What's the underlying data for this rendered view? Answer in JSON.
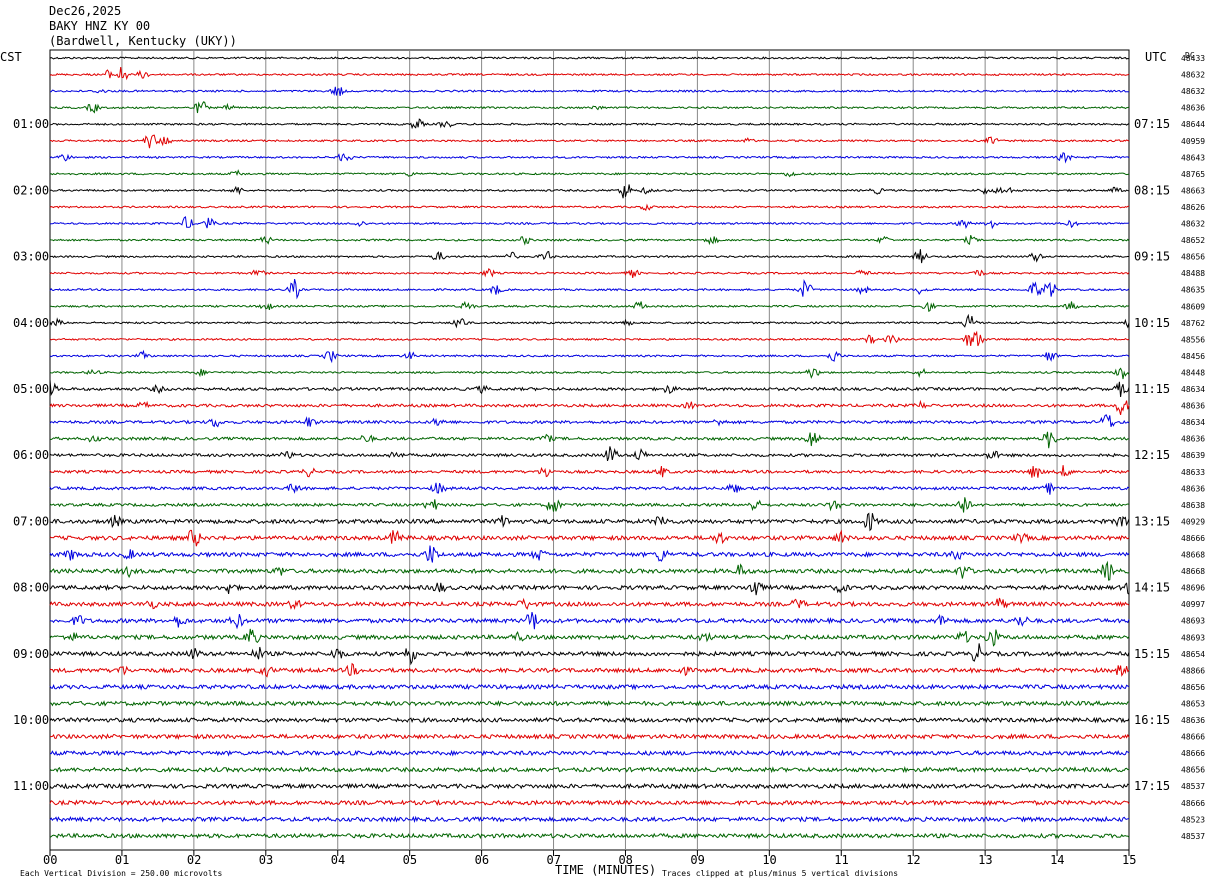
{
  "header": {
    "date": "Dec26,2025",
    "station": "BAKY HNZ KY 00",
    "location": "(Bardwell, Kentucky (UKY))"
  },
  "labels": {
    "left_tz": "CST",
    "right_tz": "UTC",
    "dc": "DC",
    "xlabel": "TIME (MINUTES)",
    "scale_note": "Each Vertical Division =  250.00 microvolts",
    "clip_note": "Traces clipped at plus/minus 5 vertical divisions"
  },
  "chart_data": {
    "type": "line",
    "title": "BAKY HNZ KY 00",
    "xlabel": "TIME (MINUTES)",
    "xlim": [
      0,
      15
    ],
    "x_ticks": [
      "00",
      "01",
      "02",
      "03",
      "04",
      "05",
      "06",
      "07",
      "08",
      "09",
      "10",
      "11",
      "12",
      "13",
      "14",
      "15"
    ],
    "trace_count": 48,
    "trace_minutes": 15,
    "color_cycle": [
      "#000000",
      "#e00000",
      "#0000e0",
      "#006400"
    ],
    "left_hour_labels": [
      "01:00",
      "02:00",
      "03:00",
      "04:00",
      "05:00",
      "06:00",
      "07:00",
      "08:00",
      "09:00",
      "10:00",
      "11:00"
    ],
    "right_hour_labels": [
      "07:15",
      "08:15",
      "09:15",
      "10:15",
      "11:15",
      "12:15",
      "13:15",
      "14:15",
      "15:15",
      "16:15",
      "17:15"
    ],
    "hour_label_rows": [
      4,
      8,
      12,
      16,
      20,
      24,
      28,
      32,
      36,
      40,
      44
    ],
    "dc_offsets": [
      "48433",
      "48632",
      "48632",
      "48636",
      "48644",
      "40959",
      "48643",
      "48765",
      "48663",
      "48626",
      "48632",
      "48652",
      "48656",
      "48488",
      "48635",
      "48609",
      "48762",
      "48556",
      "48456",
      "48448",
      "48634",
      "48636",
      "48634",
      "48636",
      "48639",
      "48633",
      "48636",
      "48638",
      "40929",
      "48666",
      "48668",
      "48668",
      "48696",
      "40997",
      "48693",
      "48693",
      "48654",
      "48866",
      "48656",
      "48653",
      "48636",
      "48666",
      "48666",
      "48656",
      "48537",
      "48666",
      "48523",
      "48537"
    ],
    "event_activity": "low early traces increasing to frequent events from 05:00 onward",
    "events": [
      [
        59.8,
        1
      ],
      [
        60.8,
        4
      ],
      [
        61.0,
        9
      ],
      [
        61.3,
        4
      ],
      [
        0.7,
        2
      ],
      [
        4.0,
        6
      ],
      [
        0.6,
        5
      ],
      [
        2.1,
        8
      ],
      [
        2.5,
        3
      ],
      [
        7.6,
        2
      ],
      [
        5.1,
        6
      ],
      [
        5.5,
        4
      ],
      [
        1.4,
        9
      ],
      [
        1.6,
        5
      ],
      [
        9.7,
        2
      ],
      [
        13.1,
        4
      ],
      [
        0.2,
        4
      ],
      [
        4.1,
        6
      ],
      [
        14.1,
        5
      ],
      [
        2.6,
        3
      ],
      [
        5.0,
        2
      ],
      [
        10.3,
        3
      ],
      [
        2.6,
        4
      ],
      [
        8.0,
        10
      ],
      [
        8.3,
        3
      ],
      [
        11.5,
        3
      ],
      [
        13.2,
        3
      ],
      [
        13.0,
        3
      ],
      [
        13.3,
        4
      ],
      [
        14.8,
        3
      ],
      [
        8.3,
        3
      ],
      [
        1.9,
        7
      ],
      [
        2.2,
        6
      ],
      [
        4.3,
        3
      ],
      [
        12.7,
        5
      ],
      [
        13.1,
        5
      ],
      [
        14.2,
        3
      ],
      [
        3.0,
        4
      ],
      [
        6.6,
        4
      ],
      [
        9.2,
        4
      ],
      [
        11.6,
        4
      ],
      [
        12.8,
        4
      ],
      [
        5.4,
        5
      ],
      [
        6.4,
        5
      ],
      [
        6.9,
        6
      ],
      [
        12.1,
        7
      ],
      [
        13.7,
        5
      ],
      [
        2.9,
        4
      ],
      [
        6.1,
        4
      ],
      [
        8.1,
        4
      ],
      [
        11.3,
        4
      ],
      [
        12.9,
        4
      ],
      [
        3.4,
        10
      ],
      [
        6.2,
        5
      ],
      [
        10.5,
        10
      ],
      [
        11.3,
        4
      ],
      [
        12.1,
        4
      ],
      [
        13.7,
        9
      ],
      [
        13.9,
        10
      ],
      [
        3.0,
        5
      ],
      [
        5.8,
        5
      ],
      [
        8.2,
        5
      ],
      [
        12.2,
        5
      ],
      [
        14.2,
        4
      ],
      [
        0.1,
        3
      ],
      [
        5.7,
        8
      ],
      [
        8.0,
        3
      ],
      [
        12.8,
        10
      ],
      [
        15.0,
        4
      ],
      [
        11.4,
        4
      ],
      [
        11.7,
        5
      ],
      [
        12.9,
        9
      ],
      [
        12.8,
        10
      ],
      [
        1.3,
        4
      ],
      [
        3.9,
        6
      ],
      [
        5.0,
        4
      ],
      [
        10.9,
        6
      ],
      [
        13.9,
        6
      ],
      [
        0.6,
        3
      ],
      [
        2.1,
        3
      ],
      [
        10.6,
        6
      ],
      [
        12.1,
        4
      ],
      [
        14.9,
        10
      ],
      [
        0.0,
        8
      ],
      [
        1.5,
        3
      ],
      [
        6.0,
        3
      ],
      [
        8.6,
        4
      ],
      [
        14.9,
        8
      ],
      [
        1.3,
        3
      ],
      [
        8.9,
        3
      ],
      [
        12.1,
        3
      ],
      [
        14.9,
        10
      ],
      [
        2.3,
        5
      ],
      [
        3.6,
        5
      ],
      [
        5.4,
        4
      ],
      [
        9.3,
        3
      ],
      [
        14.7,
        10
      ],
      [
        0.6,
        3
      ],
      [
        4.4,
        4
      ],
      [
        6.9,
        4
      ],
      [
        10.6,
        10
      ],
      [
        13.9,
        10
      ],
      [
        3.3,
        4
      ],
      [
        4.8,
        4
      ],
      [
        7.8,
        10
      ],
      [
        8.2,
        6
      ],
      [
        13.1,
        5
      ],
      [
        3.6,
        4
      ],
      [
        6.9,
        6
      ],
      [
        8.5,
        5
      ],
      [
        13.7,
        8
      ],
      [
        14.1,
        6
      ],
      [
        3.4,
        5
      ],
      [
        5.4,
        6
      ],
      [
        9.5,
        5
      ],
      [
        13.9,
        5
      ],
      [
        5.3,
        8
      ],
      [
        7.0,
        10
      ],
      [
        9.8,
        6
      ],
      [
        10.9,
        6
      ],
      [
        12.7,
        10
      ],
      [
        0.9,
        5
      ],
      [
        6.3,
        5
      ],
      [
        8.5,
        6
      ],
      [
        11.4,
        10
      ],
      [
        14.9,
        5
      ],
      [
        2.0,
        10
      ],
      [
        4.8,
        8
      ],
      [
        9.3,
        6
      ],
      [
        11.0,
        6
      ],
      [
        13.5,
        4
      ],
      [
        0.3,
        5
      ],
      [
        1.1,
        4
      ],
      [
        5.3,
        10
      ],
      [
        6.8,
        5
      ],
      [
        8.5,
        7
      ],
      [
        12.6,
        5
      ],
      [
        1.1,
        4
      ],
      [
        3.2,
        4
      ],
      [
        9.6,
        6
      ],
      [
        12.7,
        8
      ],
      [
        14.7,
        10
      ],
      [
        2.5,
        6
      ],
      [
        5.4,
        5
      ],
      [
        9.8,
        10
      ],
      [
        11.0,
        4
      ],
      [
        15.0,
        10
      ],
      [
        1.4,
        4
      ],
      [
        3.4,
        4
      ],
      [
        6.6,
        5
      ],
      [
        10.4,
        5
      ],
      [
        13.2,
        6
      ],
      [
        0.4,
        5
      ],
      [
        1.8,
        6
      ],
      [
        2.6,
        7
      ],
      [
        6.7,
        10
      ],
      [
        12.4,
        5
      ],
      [
        13.5,
        6
      ],
      [
        0.3,
        4
      ],
      [
        2.8,
        10
      ],
      [
        6.5,
        4
      ],
      [
        9.1,
        4
      ],
      [
        12.7,
        6
      ],
      [
        13.1,
        10
      ],
      [
        2.0,
        5
      ],
      [
        2.9,
        6
      ],
      [
        4.0,
        6
      ],
      [
        5.0,
        10
      ],
      [
        12.9,
        10
      ],
      [
        1.0,
        4
      ],
      [
        3.0,
        5
      ],
      [
        4.2,
        5
      ],
      [
        8.8,
        4
      ],
      [
        14.9,
        6
      ]
    ]
  }
}
